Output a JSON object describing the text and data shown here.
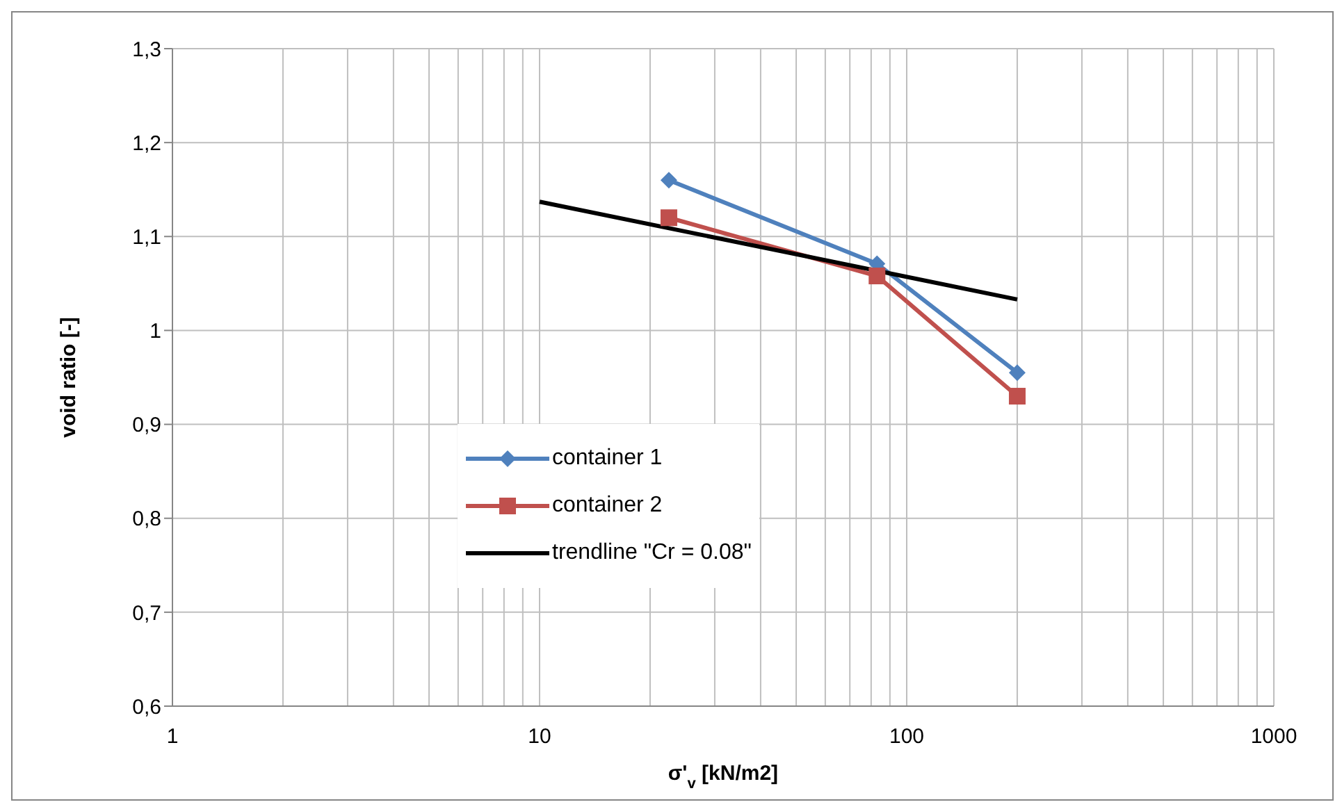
{
  "chart_data": {
    "type": "line",
    "xlabel": "σ'$_{v}$ [kN/m2]",
    "ylabel": "void ratio [-]",
    "log": "x",
    "xlim": [
      1,
      1000
    ],
    "xticks": [
      1,
      10,
      100,
      1000
    ],
    "ylim": [
      0.6,
      1.3
    ],
    "yticks": [
      {
        "value": 0.6,
        "label": "0,6"
      },
      {
        "value": 0.7,
        "label": "0,7"
      },
      {
        "value": 0.8,
        "label": "0,8"
      },
      {
        "value": 0.9,
        "label": "0,9"
      },
      {
        "value": 1,
        "label": "1"
      },
      {
        "value": 1.1,
        "label": "1,1"
      },
      {
        "value": 1.2,
        "label": "1,2"
      },
      {
        "value": 1.3,
        "label": "1,3"
      }
    ],
    "grid": true,
    "legend": "left",
    "series": [
      {
        "name": "container 1",
        "color": "#4f81bd",
        "marker": "diamond",
        "x": [
          22.5,
          83,
          200
        ],
        "values": [
          1.16,
          1.071,
          0.955
        ]
      },
      {
        "name": "container 2",
        "color": "#c0504d",
        "marker": "square",
        "x": [
          22.5,
          83,
          200
        ],
        "values": [
          1.12,
          1.058,
          0.93
        ]
      },
      {
        "name": "trendline \"Cr = 0.08\"",
        "color": "#000000",
        "marker": "none",
        "x": [
          10,
          200
        ],
        "values": [
          1.137,
          1.033
        ]
      }
    ]
  }
}
